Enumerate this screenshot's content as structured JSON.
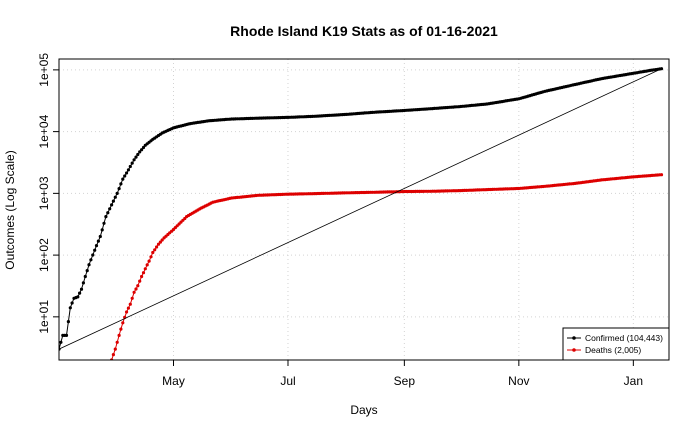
{
  "chart_data": {
    "type": "line",
    "title": "Rhode Island K19 Stats as of 01-16-2021",
    "xlabel": "Days",
    "ylabel": "Outcomes (Log Scale)",
    "y_scale": "log10",
    "ylim": [
      2,
      150000
    ],
    "xlim": [
      "2020-03-01",
      "2021-01-20"
    ],
    "grid": true,
    "legend_position": "bottom-right",
    "x_ticks": [
      {
        "label": "May",
        "date": "2020-05-01"
      },
      {
        "label": "Jul",
        "date": "2020-07-01"
      },
      {
        "label": "Sep",
        "date": "2020-09-01"
      },
      {
        "label": "Nov",
        "date": "2020-11-01"
      },
      {
        "label": "Jan",
        "date": "2021-01-01"
      }
    ],
    "y_ticks": [
      {
        "label": "1e+01",
        "value": 10
      },
      {
        "label": "1e+02",
        "value": 100
      },
      {
        "label": "1e+03",
        "value": 1000
      },
      {
        "label": "1e+04",
        "value": 10000
      },
      {
        "label": "1e+05",
        "value": 100000
      }
    ],
    "series": [
      {
        "name": "Confirmed (104,443)",
        "color": "#000000",
        "x": [
          "2020-03-01",
          "2020-03-03",
          "2020-03-05",
          "2020-03-07",
          "2020-03-09",
          "2020-03-11",
          "2020-03-13",
          "2020-03-15",
          "2020-03-17",
          "2020-03-20",
          "2020-03-23",
          "2020-03-26",
          "2020-03-29",
          "2020-04-01",
          "2020-04-04",
          "2020-04-07",
          "2020-04-10",
          "2020-04-13",
          "2020-04-16",
          "2020-04-20",
          "2020-04-25",
          "2020-05-01",
          "2020-05-10",
          "2020-05-20",
          "2020-06-01",
          "2020-06-15",
          "2020-07-01",
          "2020-07-15",
          "2020-08-01",
          "2020-08-15",
          "2020-09-01",
          "2020-09-15",
          "2020-10-01",
          "2020-10-15",
          "2020-11-01",
          "2020-11-15",
          "2020-12-01",
          "2020-12-15",
          "2021-01-01",
          "2021-01-10",
          "2021-01-16"
        ],
        "values": [
          3,
          5,
          5,
          14,
          20,
          21,
          28,
          45,
          70,
          120,
          200,
          420,
          650,
          1000,
          1700,
          2400,
          3500,
          4700,
          6000,
          7500,
          9500,
          11500,
          13500,
          15000,
          16000,
          16500,
          17000,
          17700,
          19000,
          20500,
          22000,
          23500,
          25500,
          28000,
          34000,
          45000,
          58000,
          72000,
          88000,
          98000,
          104443
        ]
      },
      {
        "name": "Deaths (2,005)",
        "color": "#dd0000",
        "x": [
          "2020-03-29",
          "2020-03-31",
          "2020-04-02",
          "2020-04-04",
          "2020-04-06",
          "2020-04-08",
          "2020-04-10",
          "2020-04-12",
          "2020-04-14",
          "2020-04-16",
          "2020-04-18",
          "2020-04-20",
          "2020-04-23",
          "2020-04-26",
          "2020-05-01",
          "2020-05-08",
          "2020-05-15",
          "2020-05-22",
          "2020-06-01",
          "2020-06-15",
          "2020-07-01",
          "2020-07-15",
          "2020-08-01",
          "2020-08-15",
          "2020-09-01",
          "2020-09-15",
          "2020-10-01",
          "2020-10-15",
          "2020-11-01",
          "2020-11-15",
          "2020-12-01",
          "2020-12-15",
          "2021-01-01",
          "2021-01-16"
        ],
        "values": [
          2,
          3,
          5,
          8,
          12,
          16,
          25,
          32,
          45,
          60,
          80,
          110,
          150,
          190,
          260,
          420,
          560,
          720,
          840,
          930,
          970,
          990,
          1020,
          1040,
          1070,
          1080,
          1110,
          1150,
          1200,
          1300,
          1450,
          1650,
          1850,
          2005
        ]
      },
      {
        "name": "",
        "color": "#000000",
        "style": "thin-line",
        "x": [
          "2020-03-01",
          "2021-01-16"
        ],
        "values": [
          3,
          104443
        ]
      }
    ]
  }
}
